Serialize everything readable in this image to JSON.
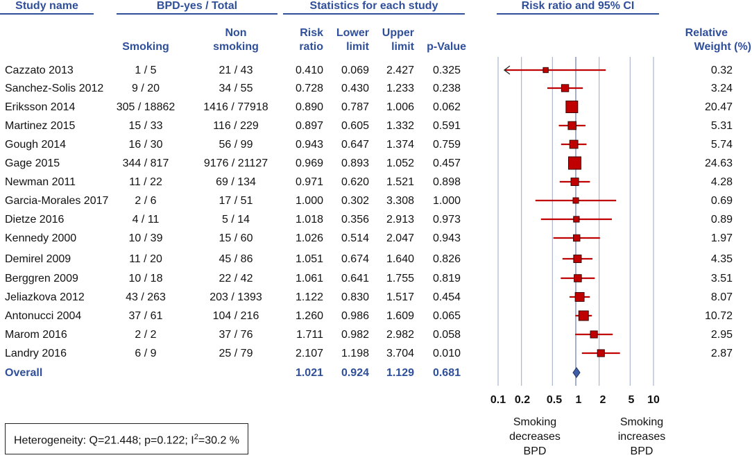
{
  "headers": {
    "study_name": "Study name",
    "bpd_group": "BPD-yes / Total",
    "stats_group": "Statistics for each study",
    "plot_group": "Risk ratio and 95% CI",
    "smoking": "Smoking",
    "non_smoking_1": "Non",
    "non_smoking_2": "smoking",
    "risk_1": "Risk",
    "risk_2": "ratio",
    "lower_1": "Lower",
    "lower_2": "limit",
    "upper_1": "Upper",
    "upper_2": "limit",
    "pvalue": "p-Value",
    "weight_1": "Relative",
    "weight_2": "Weight (%)"
  },
  "studies": [
    {
      "name": "Cazzato 2013",
      "smoking": "1 / 5",
      "non_smoking": "21 / 43",
      "rr": "0.410",
      "lower": "0.069",
      "upper": "2.427",
      "p": "0.325",
      "weight": "0.32"
    },
    {
      "name": "Sanchez-Solis 2012",
      "smoking": "9 / 20",
      "non_smoking": "34 / 55",
      "rr": "0.728",
      "lower": "0.430",
      "upper": "1.233",
      "p": "0.238",
      "weight": "3.24"
    },
    {
      "name": "Eriksson 2014",
      "smoking": "305 / 18862",
      "non_smoking": "1416 / 77918",
      "rr": "0.890",
      "lower": "0.787",
      "upper": "1.006",
      "p": "0.062",
      "weight": "20.47"
    },
    {
      "name": "Martinez 2015",
      "smoking": "15 / 33",
      "non_smoking": "116 / 229",
      "rr": "0.897",
      "lower": "0.605",
      "upper": "1.332",
      "p": "0.591",
      "weight": "5.31"
    },
    {
      "name": "Gough  2014",
      "smoking": "16 / 30",
      "non_smoking": "56 / 99",
      "rr": "0.943",
      "lower": "0.647",
      "upper": "1.374",
      "p": "0.759",
      "weight": "5.74"
    },
    {
      "name": "Gage 2015",
      "smoking": "344 / 817",
      "non_smoking": "9176 / 21127",
      "rr": "0.969",
      "lower": "0.893",
      "upper": "1.052",
      "p": "0.457",
      "weight": "24.63"
    },
    {
      "name": "Newman 2011",
      "smoking": "11 / 22",
      "non_smoking": "69 / 134",
      "rr": "0.971",
      "lower": "0.620",
      "upper": "1.521",
      "p": "0.898",
      "weight": "4.28"
    },
    {
      "name": "Garcia-Morales 2017",
      "smoking": "2 / 6",
      "non_smoking": "17 / 51",
      "rr": "1.000",
      "lower": "0.302",
      "upper": "3.308",
      "p": "1.000",
      "weight": "0.69"
    },
    {
      "name": "Dietze 2016",
      "smoking": "4 / 11",
      "non_smoking": "5 / 14",
      "rr": "1.018",
      "lower": "0.356",
      "upper": "2.913",
      "p": "0.973",
      "weight": "0.89"
    },
    {
      "name": "Kennedy 2000",
      "smoking": "10 / 39",
      "non_smoking": "15 / 60",
      "rr": "1.026",
      "lower": "0.514",
      "upper": "2.047",
      "p": "0.943",
      "weight": "1.97"
    },
    {
      "name": "Demirel 2009",
      "smoking": "11 / 20",
      "non_smoking": "45 / 86",
      "rr": "1.051",
      "lower": "0.674",
      "upper": "1.640",
      "p": "0.826",
      "weight": "4.35"
    },
    {
      "name": "Berggren 2009",
      "smoking": "10 / 18",
      "non_smoking": "22 / 42",
      "rr": "1.061",
      "lower": "0.641",
      "upper": "1.755",
      "p": "0.819",
      "weight": "3.51"
    },
    {
      "name": "Jeliazkova 2012",
      "smoking": "43 / 263",
      "non_smoking": "203 / 1393",
      "rr": "1.122",
      "lower": "0.830",
      "upper": "1.517",
      "p": "0.454",
      "weight": "8.07"
    },
    {
      "name": "Antonucci 2004",
      "smoking": "37 / 61",
      "non_smoking": "104 / 216",
      "rr": "1.260",
      "lower": "0.986",
      "upper": "1.609",
      "p": "0.065",
      "weight": "10.72"
    },
    {
      "name": "Marom 2016",
      "smoking": "2 / 2",
      "non_smoking": "37 / 76",
      "rr": "1.711",
      "lower": "0.982",
      "upper": "2.982",
      "p": "0.058",
      "weight": "2.95"
    },
    {
      "name": "Landry 2016",
      "smoking": "6 / 9",
      "non_smoking": "25 / 79",
      "rr": "2.107",
      "lower": "1.198",
      "upper": "3.704",
      "p": "0.010",
      "weight": "2.87"
    }
  ],
  "overall": {
    "name": "Overall",
    "rr": "1.021",
    "lower": "0.924",
    "upper": "1.129",
    "p": "0.681"
  },
  "heterogeneity": {
    "prefix": "Heterogeneity: Q=21.448;  p=0.122;  I",
    "sup": "2",
    "suffix": "=30.2 %"
  },
  "chart_data": {
    "type": "forest",
    "title": "Risk ratio and 95% CI",
    "x_scale": "log",
    "xlim": [
      0.1,
      10
    ],
    "reference_line": 1,
    "ticks": [
      0.1,
      0.2,
      0.5,
      1,
      2,
      5,
      10
    ],
    "tick_labels": [
      "0.1",
      "0.2",
      "0.5",
      "1",
      "2",
      "5",
      "10"
    ],
    "gridlines": [
      0.2,
      0.5,
      1,
      2,
      5
    ],
    "left_note": "Smoking decreases BPD",
    "right_note": "Smoking increases BPD",
    "left_note_lines": [
      "Smoking",
      "decreases",
      "BPD"
    ],
    "right_note_lines": [
      "Smoking",
      "increases",
      "BPD"
    ],
    "marker_color": "#c00000",
    "diamond_color": "#3f5fa8",
    "points": [
      {
        "rr": 0.41,
        "lower": 0.069,
        "upper": 2.427,
        "weight": 0.32,
        "clipped_left": true
      },
      {
        "rr": 0.728,
        "lower": 0.43,
        "upper": 1.233,
        "weight": 3.24
      },
      {
        "rr": 0.89,
        "lower": 0.787,
        "upper": 1.006,
        "weight": 20.47
      },
      {
        "rr": 0.897,
        "lower": 0.605,
        "upper": 1.332,
        "weight": 5.31
      },
      {
        "rr": 0.943,
        "lower": 0.647,
        "upper": 1.374,
        "weight": 5.74
      },
      {
        "rr": 0.969,
        "lower": 0.893,
        "upper": 1.052,
        "weight": 24.63
      },
      {
        "rr": 0.971,
        "lower": 0.62,
        "upper": 1.521,
        "weight": 4.28
      },
      {
        "rr": 1.0,
        "lower": 0.302,
        "upper": 3.308,
        "weight": 0.69
      },
      {
        "rr": 1.018,
        "lower": 0.356,
        "upper": 2.913,
        "weight": 0.89
      },
      {
        "rr": 1.026,
        "lower": 0.514,
        "upper": 2.047,
        "weight": 1.97
      },
      {
        "rr": 1.051,
        "lower": 0.674,
        "upper": 1.64,
        "weight": 4.35
      },
      {
        "rr": 1.061,
        "lower": 0.641,
        "upper": 1.755,
        "weight": 3.51
      },
      {
        "rr": 1.122,
        "lower": 0.83,
        "upper": 1.517,
        "weight": 8.07
      },
      {
        "rr": 1.26,
        "lower": 0.986,
        "upper": 1.609,
        "weight": 10.72
      },
      {
        "rr": 1.711,
        "lower": 0.982,
        "upper": 2.982,
        "weight": 2.95
      },
      {
        "rr": 2.107,
        "lower": 1.198,
        "upper": 3.704,
        "weight": 2.87
      }
    ],
    "overall": {
      "rr": 1.021,
      "lower": 0.924,
      "upper": 1.129
    }
  }
}
